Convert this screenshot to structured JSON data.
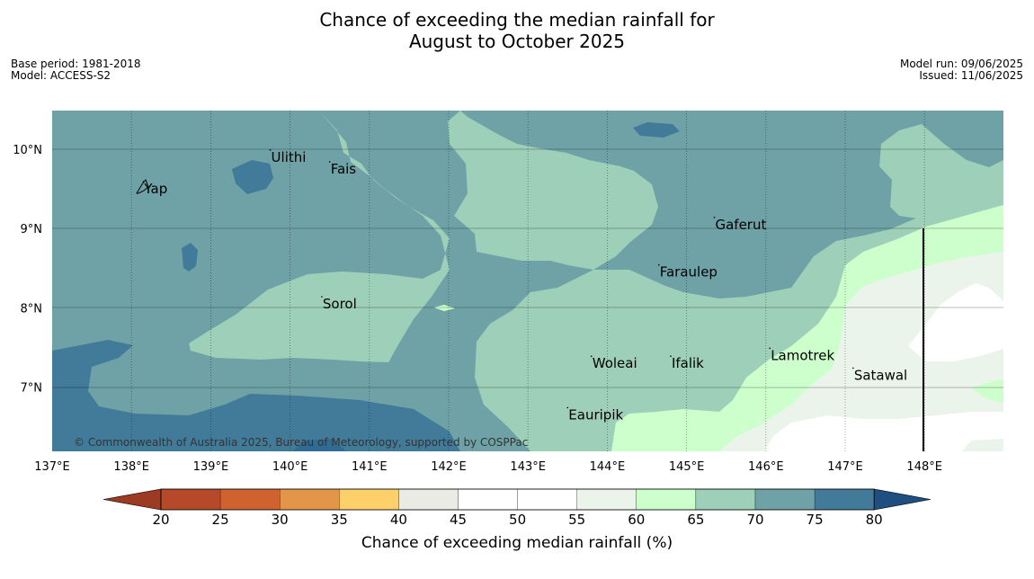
{
  "title_line1": "Chance of exceeding the median rainfall for",
  "title_line2": "August to October 2025",
  "base_period": "Base period: 1981-2018",
  "model": "Model: ACCESS-S2",
  "model_run": "Model run: 09/06/2025",
  "issued": "Issued: 11/06/2025",
  "copyright": "© Commonwealth of Australia 2025, Bureau of Meteorology, supported by COSPPac",
  "lon_ticks": [
    "137°E",
    "138°E",
    "139°E",
    "140°E",
    "141°E",
    "142°E",
    "143°E",
    "144°E",
    "145°E",
    "146°E",
    "147°E",
    "148°E"
  ],
  "lat_ticks": [
    "10°N",
    "9°N",
    "8°N",
    "7°N"
  ],
  "places": [
    {
      "name": "Ulithi",
      "lon": 139.75,
      "lat": 9.9
    },
    {
      "name": "Fais",
      "lon": 140.5,
      "lat": 9.75
    },
    {
      "name": "Yap",
      "lon": 138.15,
      "lat": 9.5
    },
    {
      "name": "Gaferut",
      "lon": 145.35,
      "lat": 9.05
    },
    {
      "name": "Faraulep",
      "lon": 144.65,
      "lat": 8.45
    },
    {
      "name": "Sorol",
      "lon": 140.4,
      "lat": 8.05
    },
    {
      "name": "Lamotrek",
      "lon": 146.05,
      "lat": 7.4
    },
    {
      "name": "Woleai",
      "lon": 143.8,
      "lat": 7.3
    },
    {
      "name": "Ifalik",
      "lon": 144.8,
      "lat": 7.3
    },
    {
      "name": "Satawal",
      "lon": 147.1,
      "lat": 7.15
    },
    {
      "name": "Eauripik",
      "lon": 143.5,
      "lat": 6.65
    }
  ],
  "colorbar": {
    "label": "Chance of exceeding median rainfall (%)",
    "ticks": [
      "20",
      "25",
      "30",
      "35",
      "40",
      "45",
      "50",
      "55",
      "60",
      "65",
      "70",
      "75",
      "80"
    ],
    "colors": [
      "#b5492a",
      "#d0622f",
      "#e3954a",
      "#fdd06a",
      "#ebebe6",
      "#ffffff",
      "#ffffff",
      "#eaf4ea",
      "#ccffcc",
      "#9ecfb8",
      "#6ea2a6",
      "#427a99"
    ],
    "under_color": "#9c3a22",
    "over_color": "#1f4e80"
  }
}
